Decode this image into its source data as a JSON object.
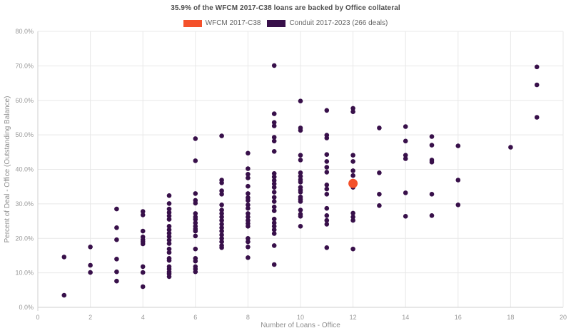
{
  "title": "35.9% of the WFCM 2017-C38 loans are backed by Office collateral",
  "legend": {
    "items": [
      {
        "label": "WFCM 2017-C38",
        "color": "#f4512b"
      },
      {
        "label": "Conduit 2017-2023 (266 deals)",
        "color": "#38104a"
      }
    ]
  },
  "colors": {
    "background": "#ffffff",
    "grid": "#e8e8e8",
    "axis": "#cfcfcf",
    "tick_label": "#999999",
    "axis_title": "#8e8e8e",
    "title_text": "#4d4d4d",
    "legend_text": "#666666",
    "accent_orange": "#f4512b",
    "accent_purple": "#38104a"
  },
  "chart_data": {
    "type": "scatter",
    "title": "35.9% of the WFCM 2017-C38 loans are backed by Office collateral",
    "xlabel": "Number of Loans - Office",
    "ylabel": "Percent of Deal - Office (Outstanding Balance)",
    "xlim": [
      0,
      20
    ],
    "ylim": [
      0,
      80
    ],
    "x_ticks": [
      0,
      2,
      4,
      6,
      8,
      10,
      12,
      14,
      16,
      18,
      20
    ],
    "y_ticks": [
      0,
      10,
      20,
      30,
      40,
      50,
      60,
      70,
      80
    ],
    "y_tick_suffix": "%",
    "grid": true,
    "legend_position": "top",
    "series": [
      {
        "name": "Conduit 2017-2023 (266 deals)",
        "color": "#38104a",
        "marker_radius": 3.3,
        "point_name": "conduit-data-point",
        "points": [
          [
            1,
            14.6
          ],
          [
            1,
            3.5
          ],
          [
            2,
            17.5
          ],
          [
            2,
            12.2
          ],
          [
            2,
            10.1
          ],
          [
            3,
            28.5
          ],
          [
            3,
            23.1
          ],
          [
            3,
            19.6
          ],
          [
            3,
            14.0
          ],
          [
            3,
            10.3
          ],
          [
            3,
            7.6
          ],
          [
            4,
            27.8
          ],
          [
            4,
            26.8
          ],
          [
            4,
            22.1
          ],
          [
            4,
            20.4
          ],
          [
            4,
            19.6
          ],
          [
            4,
            19.0
          ],
          [
            4,
            18.4
          ],
          [
            4,
            11.8
          ],
          [
            4,
            10.1
          ],
          [
            4,
            6.0
          ],
          [
            5,
            32.4
          ],
          [
            5,
            30.1
          ],
          [
            5,
            28.5
          ],
          [
            5,
            27.5
          ],
          [
            5,
            26.5
          ],
          [
            5,
            25.5
          ],
          [
            5,
            23.5
          ],
          [
            5,
            22.5
          ],
          [
            5,
            21.5
          ],
          [
            5,
            20.5
          ],
          [
            5,
            19.5
          ],
          [
            5,
            18.5
          ],
          [
            5,
            16.9
          ],
          [
            5,
            15.9
          ],
          [
            5,
            14.2
          ],
          [
            5,
            13.6
          ],
          [
            5,
            11.8
          ],
          [
            5,
            11.1
          ],
          [
            5,
            10.3
          ],
          [
            5,
            9.7
          ],
          [
            5,
            8.9
          ],
          [
            6,
            48.9
          ],
          [
            6,
            42.5
          ],
          [
            6,
            33.0
          ],
          [
            6,
            31.0
          ],
          [
            6,
            30.2
          ],
          [
            6,
            27.2
          ],
          [
            6,
            26.2
          ],
          [
            6,
            25.5
          ],
          [
            6,
            24.5
          ],
          [
            6,
            23.5
          ],
          [
            6,
            22.7
          ],
          [
            6,
            22.1
          ],
          [
            6,
            20.7
          ],
          [
            6,
            16.9
          ],
          [
            6,
            14.2
          ],
          [
            6,
            13.4
          ],
          [
            6,
            11.8
          ],
          [
            6,
            11.1
          ],
          [
            6,
            10.3
          ],
          [
            7,
            49.7
          ],
          [
            7,
            36.9
          ],
          [
            7,
            36.1
          ],
          [
            7,
            33.8
          ],
          [
            7,
            32.8
          ],
          [
            7,
            29.7
          ],
          [
            7,
            28.2
          ],
          [
            7,
            27.2
          ],
          [
            7,
            26.2
          ],
          [
            7,
            25.2
          ],
          [
            7,
            24.1
          ],
          [
            7,
            23.1
          ],
          [
            7,
            22.1
          ],
          [
            7,
            21.0
          ],
          [
            7,
            20.0
          ],
          [
            7,
            19.0
          ],
          [
            7,
            17.9
          ],
          [
            7,
            17.3
          ],
          [
            8,
            44.7
          ],
          [
            8,
            40.2
          ],
          [
            8,
            38.6
          ],
          [
            8,
            37.5
          ],
          [
            8,
            35.1
          ],
          [
            8,
            33.0
          ],
          [
            8,
            31.8
          ],
          [
            8,
            31.0
          ],
          [
            8,
            29.7
          ],
          [
            8,
            28.7
          ],
          [
            8,
            27.2
          ],
          [
            8,
            26.2
          ],
          [
            8,
            25.2
          ],
          [
            8,
            24.3
          ],
          [
            8,
            23.5
          ],
          [
            8,
            20.0
          ],
          [
            8,
            19.0
          ],
          [
            8,
            17.5
          ],
          [
            8,
            14.4
          ],
          [
            9,
            70.1
          ],
          [
            9,
            56.1
          ],
          [
            9,
            53.6
          ],
          [
            9,
            52.6
          ],
          [
            9,
            49.3
          ],
          [
            9,
            48.2
          ],
          [
            9,
            45.2
          ],
          [
            9,
            38.8
          ],
          [
            9,
            37.8
          ],
          [
            9,
            36.8
          ],
          [
            9,
            35.8
          ],
          [
            9,
            34.8
          ],
          [
            9,
            33.4
          ],
          [
            9,
            31.9
          ],
          [
            9,
            30.7
          ],
          [
            9,
            29.1
          ],
          [
            9,
            28.0
          ],
          [
            9,
            25.6
          ],
          [
            9,
            24.5
          ],
          [
            9,
            23.5
          ],
          [
            9,
            22.5
          ],
          [
            9,
            21.4
          ],
          [
            9,
            17.9
          ],
          [
            9,
            12.4
          ],
          [
            10,
            59.8
          ],
          [
            10,
            52.0
          ],
          [
            10,
            51.3
          ],
          [
            10,
            44.1
          ],
          [
            10,
            42.7
          ],
          [
            10,
            39.0
          ],
          [
            10,
            38.0
          ],
          [
            10,
            37.0
          ],
          [
            10,
            36.3
          ],
          [
            10,
            34.8
          ],
          [
            10,
            34.0
          ],
          [
            10,
            33.4
          ],
          [
            10,
            32.0
          ],
          [
            10,
            31.3
          ],
          [
            10,
            30.7
          ],
          [
            10,
            28.2
          ],
          [
            10,
            27.0
          ],
          [
            10,
            26.4
          ],
          [
            10,
            23.5
          ],
          [
            11,
            57.1
          ],
          [
            11,
            49.9
          ],
          [
            11,
            49.1
          ],
          [
            11,
            44.3
          ],
          [
            11,
            42.3
          ],
          [
            11,
            40.6
          ],
          [
            11,
            39.2
          ],
          [
            11,
            35.5
          ],
          [
            11,
            34.3
          ],
          [
            11,
            32.8
          ],
          [
            11,
            28.7
          ],
          [
            11,
            26.6
          ],
          [
            11,
            25.2
          ],
          [
            11,
            24.1
          ],
          [
            11,
            17.3
          ],
          [
            12,
            57.7
          ],
          [
            12,
            56.7
          ],
          [
            12,
            44.1
          ],
          [
            12,
            42.3
          ],
          [
            12,
            39.6
          ],
          [
            12,
            38.2
          ],
          [
            12,
            34.8
          ],
          [
            12,
            27.3
          ],
          [
            12,
            26.2
          ],
          [
            12,
            25.2
          ],
          [
            12,
            16.9
          ],
          [
            13,
            52.0
          ],
          [
            13,
            39.0
          ],
          [
            13,
            32.8
          ],
          [
            13,
            29.5
          ],
          [
            14,
            52.4
          ],
          [
            14,
            48.2
          ],
          [
            14,
            44.1
          ],
          [
            14,
            43.1
          ],
          [
            14,
            33.2
          ],
          [
            14,
            26.4
          ],
          [
            15,
            49.5
          ],
          [
            15,
            47.0
          ],
          [
            15,
            42.7
          ],
          [
            15,
            42.1
          ],
          [
            15,
            32.8
          ],
          [
            15,
            26.6
          ],
          [
            16,
            46.8
          ],
          [
            16,
            36.9
          ],
          [
            16,
            29.7
          ],
          [
            18,
            46.4
          ],
          [
            19,
            69.7
          ],
          [
            19,
            64.5
          ],
          [
            19,
            55.1
          ]
        ]
      },
      {
        "name": "WFCM 2017-C38",
        "color": "#f4512b",
        "marker_radius": 6.5,
        "point_name": "wfcm-data-point",
        "points": [
          [
            12,
            35.9
          ]
        ]
      }
    ]
  }
}
